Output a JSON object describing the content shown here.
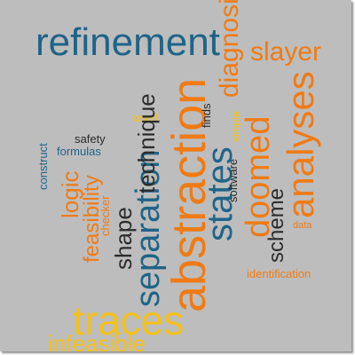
{
  "colors": {
    "background": "#bdbdbd",
    "blue": "#1f6488",
    "dark": "#2b2b2b",
    "orange": "#f07b14",
    "yellow": "#f4c01a"
  },
  "words": {
    "refinement": "refinement",
    "slayer": "slayer",
    "diagnosis": "diagnosis",
    "analyses": "analyses",
    "abstraction": "abstraction",
    "states": "states",
    "doomed": "doomed",
    "scheme": "scheme",
    "separation": "separation",
    "shape": "shape",
    "technique": "technique",
    "feasibility": "feasibility",
    "logic": "logic",
    "traces": "traces",
    "infeasible": "infeasible",
    "identification": "identification",
    "data": "data",
    "software": "software",
    "simple": "simple",
    "finds": "finds",
    "used": "used",
    "safety": "safety",
    "formulas": "formulas",
    "construct": "construct",
    "checker": "checker"
  }
}
